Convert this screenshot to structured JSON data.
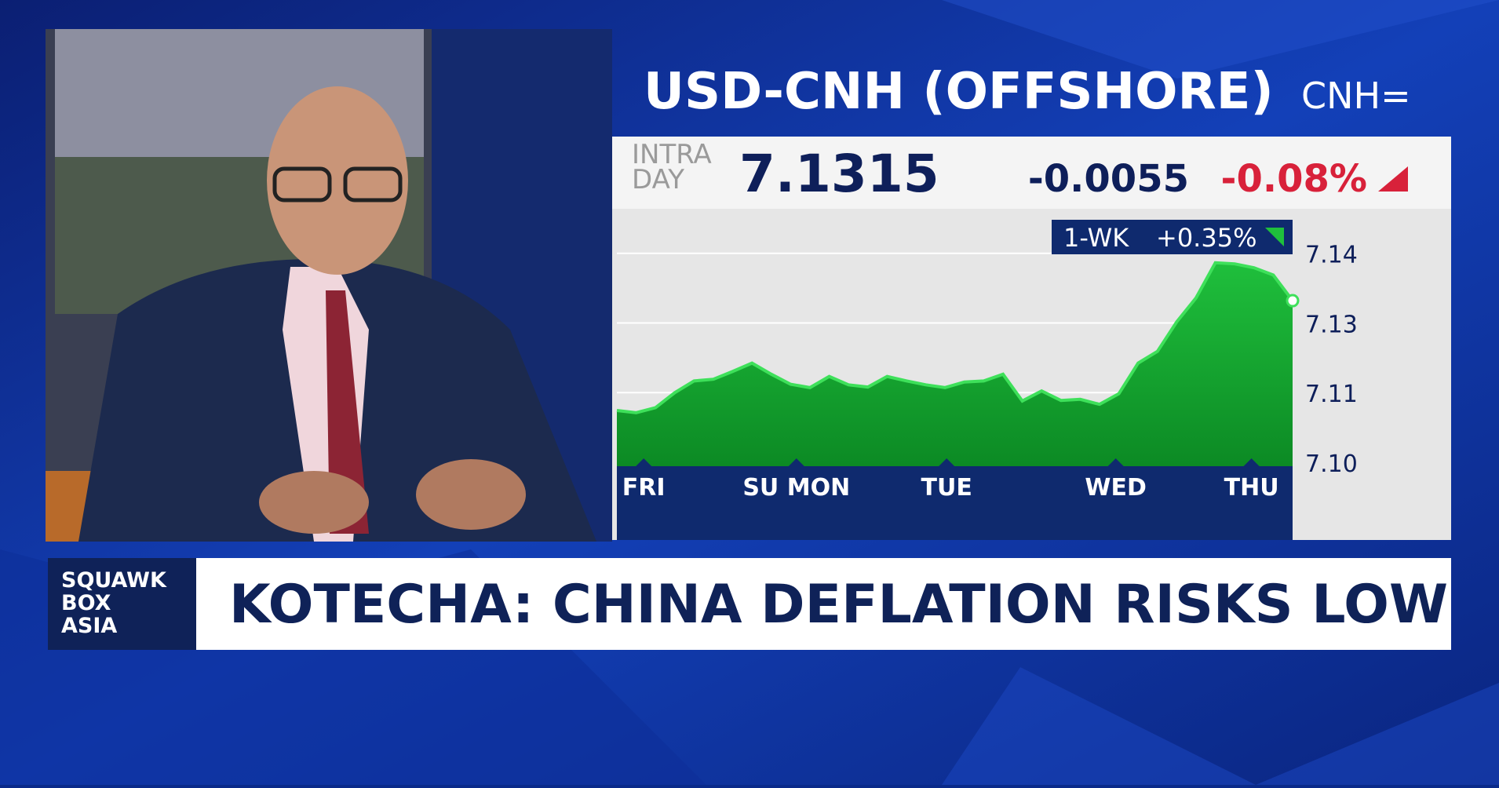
{
  "show": [
    "SQUAWK",
    "BOX",
    "ASIA"
  ],
  "headline": "KOTECHA: CHINA DEFLATION RISKS LOW",
  "chart_data": {
    "type": "area",
    "title": "USD-CNH (OFFSHORE)",
    "ticker": "CNH=",
    "price_label": [
      "INTRA",
      "DAY"
    ],
    "last_price": 7.1315,
    "change": -0.0055,
    "change_pct": {
      "value": -0.08,
      "label": "-0.08%"
    },
    "period": "1-WK",
    "period_change": {
      "value": 0.35,
      "label": "+0.35%"
    },
    "color": "#1fbf3c",
    "x": [
      0,
      1,
      2,
      3,
      4,
      5,
      6,
      7,
      8,
      9,
      10,
      11,
      12,
      13,
      14,
      15,
      16,
      17,
      18,
      19,
      20,
      21,
      22,
      23,
      24,
      25,
      26,
      27,
      28,
      29,
      30,
      31,
      32,
      33,
      34,
      35
    ],
    "values": [
      7.1118,
      7.1114,
      7.1123,
      7.115,
      7.1171,
      7.1174,
      7.1188,
      7.1203,
      7.1183,
      7.1165,
      7.1159,
      7.1179,
      7.1164,
      7.116,
      7.1179,
      7.1171,
      7.1164,
      7.1159,
      7.1169,
      7.1171,
      7.1183,
      7.1135,
      7.1153,
      7.1136,
      7.1138,
      7.1129,
      7.1148,
      7.1203,
      7.1224,
      7.1277,
      7.132,
      7.1383,
      7.1381,
      7.1374,
      7.1361,
      7.1315
    ],
    "xlim": [
      0,
      35
    ],
    "xticks": [
      {
        "value": 1.39,
        "label": "FRI"
      },
      {
        "value": 9.3,
        "label": "SU MON"
      },
      {
        "value": 17.08,
        "label": "TUE"
      },
      {
        "value": 25.84,
        "label": "WED"
      },
      {
        "value": 32.87,
        "label": "THU"
      }
    ],
    "ylim": [
      7.1018,
      7.1477
    ],
    "yticks": [
      {
        "value": 7.1025,
        "label": "7.10"
      },
      {
        "value": 7.115,
        "label": "7.11"
      },
      {
        "value": 7.1275,
        "label": "7.13"
      },
      {
        "value": 7.14,
        "label": "7.14"
      }
    ],
    "grid": true
  }
}
